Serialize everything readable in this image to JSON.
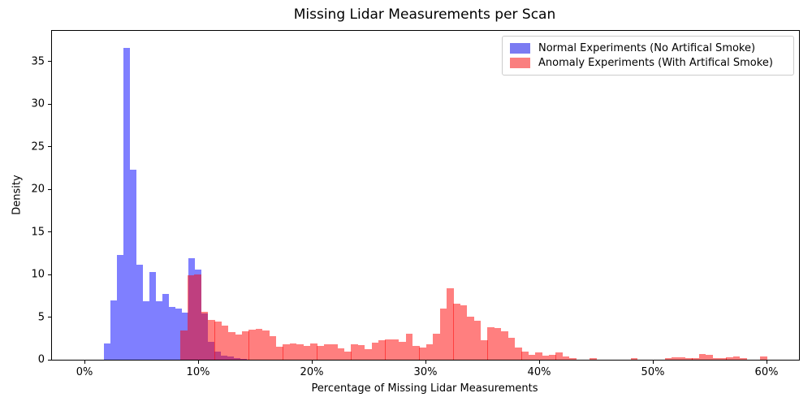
{
  "chart_data": {
    "type": "bar",
    "subtype": "overlapping-density-histogram",
    "title": "Missing Lidar Measurements per Scan",
    "xlabel": "Percentage of Missing Lidar Measurements",
    "ylabel": "Density",
    "x_tick_labels": [
      "0%",
      "10%",
      "20%",
      "30%",
      "40%",
      "50%",
      "60%"
    ],
    "x_tick_values_pct": [
      0,
      10,
      20,
      30,
      40,
      50,
      60
    ],
    "y_tick_labels": [
      "0",
      "5",
      "10",
      "15",
      "20",
      "25",
      "30",
      "35"
    ],
    "y_tick_values": [
      0,
      5,
      10,
      15,
      20,
      25,
      30,
      35
    ],
    "xlim_pct": [
      -2.9,
      62.8
    ],
    "ylim": [
      0,
      38.6
    ],
    "grid": false,
    "legend_position": "upper right",
    "legend": [
      {
        "label": "Normal Experiments (No Artifical Smoke)"
      },
      {
        "label": "Anomaly Experiments (With Artifical Smoke)"
      }
    ],
    "series": [
      {
        "name": "Normal Experiments (No Artifical Smoke)",
        "color": "rgba(0,0,255,0.5)",
        "legend_swatch_color": "#7b7bf2",
        "bin_start_pct": 1.71,
        "bin_width_pct": 0.5714,
        "densities": [
          1.9,
          7.0,
          12.3,
          36.6,
          22.3,
          11.2,
          6.9,
          10.3,
          6.9,
          7.7,
          6.2,
          6.0,
          5.5,
          11.9,
          10.6,
          5.4,
          2.1,
          1.0,
          0.5,
          0.35,
          0.2,
          0.1
        ]
      },
      {
        "name": "Anomaly Experiments (With Artifical Smoke)",
        "color": "rgba(255,0,0,0.5)",
        "legend_swatch_color": "#fa7f7f",
        "bin_start_pct": 8.45,
        "bin_width_pct": 0.6,
        "densities": [
          3.4,
          9.9,
          10.0,
          5.6,
          4.7,
          4.5,
          4.0,
          3.2,
          3.0,
          3.3,
          3.5,
          3.6,
          3.4,
          2.8,
          1.5,
          1.8,
          1.9,
          1.8,
          1.6,
          1.9,
          1.6,
          1.8,
          1.8,
          1.3,
          1.0,
          1.8,
          1.7,
          1.2,
          2.0,
          2.3,
          2.4,
          2.4,
          2.1,
          3.1,
          1.6,
          1.4,
          1.8,
          3.1,
          6.0,
          8.4,
          6.6,
          6.4,
          5.1,
          4.6,
          2.3,
          3.8,
          3.7,
          3.3,
          2.6,
          1.4,
          1.0,
          0.6,
          0.9,
          0.45,
          0.6,
          0.9,
          0.35,
          0.2,
          0,
          0,
          0.2,
          0,
          0,
          0,
          0,
          0,
          0.15,
          0,
          0,
          0,
          0,
          0.2,
          0.3,
          0.3,
          0.2,
          0.2,
          0.65,
          0.55,
          0.2,
          0.2,
          0.3,
          0.4,
          0.2,
          0,
          0,
          0.35
        ]
      }
    ]
  }
}
